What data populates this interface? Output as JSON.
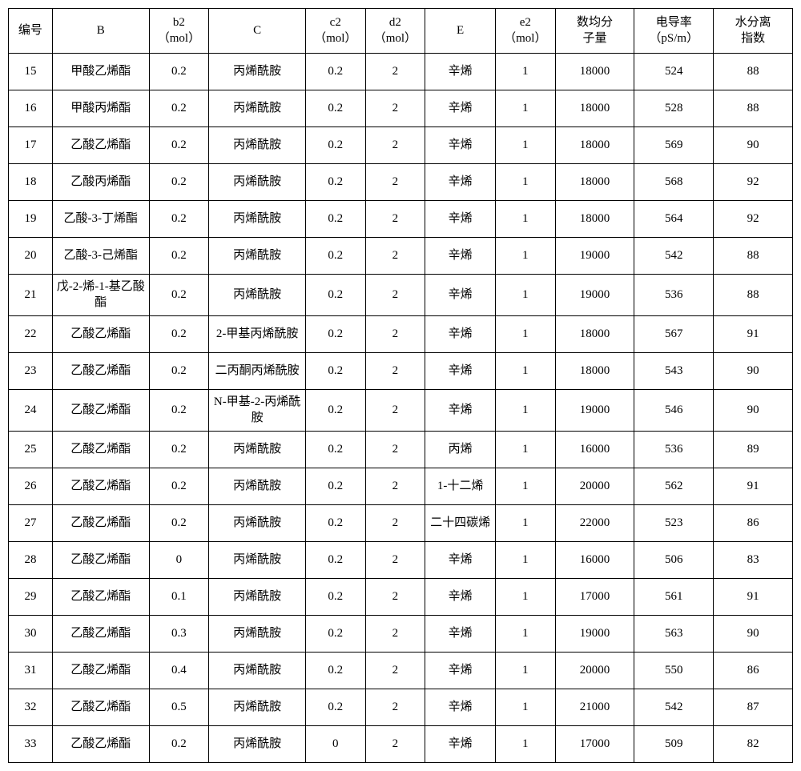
{
  "columns": [
    {
      "label": "编号",
      "class": "col-num"
    },
    {
      "label": "B",
      "class": "col-B"
    },
    {
      "label": "b2（mol）",
      "class": "col-b2"
    },
    {
      "label": "C",
      "class": "col-C"
    },
    {
      "label": "c2（mol）",
      "class": "col-c2"
    },
    {
      "label": "d2（mol）",
      "class": "col-d2"
    },
    {
      "label": "E",
      "class": "col-E"
    },
    {
      "label": "e2（mol）",
      "class": "col-e2"
    },
    {
      "label": "数均分子量",
      "class": "col-mw"
    },
    {
      "label": "电导率（pS/m）",
      "class": "col-cd"
    },
    {
      "label": "水分离指数",
      "class": "col-ws"
    }
  ],
  "rows": [
    [
      "15",
      "甲酸乙烯酯",
      "0.2",
      "丙烯酰胺",
      "0.2",
      "2",
      "辛烯",
      "1",
      "18000",
      "524",
      "88"
    ],
    [
      "16",
      "甲酸丙烯酯",
      "0.2",
      "丙烯酰胺",
      "0.2",
      "2",
      "辛烯",
      "1",
      "18000",
      "528",
      "88"
    ],
    [
      "17",
      "乙酸乙烯酯",
      "0.2",
      "丙烯酰胺",
      "0.2",
      "2",
      "辛烯",
      "1",
      "18000",
      "569",
      "90"
    ],
    [
      "18",
      "乙酸丙烯酯",
      "0.2",
      "丙烯酰胺",
      "0.2",
      "2",
      "辛烯",
      "1",
      "18000",
      "568",
      "92"
    ],
    [
      "19",
      "乙酸-3-丁烯酯",
      "0.2",
      "丙烯酰胺",
      "0.2",
      "2",
      "辛烯",
      "1",
      "18000",
      "564",
      "92"
    ],
    [
      "20",
      "乙酸-3-己烯酯",
      "0.2",
      "丙烯酰胺",
      "0.2",
      "2",
      "辛烯",
      "1",
      "19000",
      "542",
      "88"
    ],
    [
      "21",
      "戊-2-烯-1-基乙酸酯",
      "0.2",
      "丙烯酰胺",
      "0.2",
      "2",
      "辛烯",
      "1",
      "19000",
      "536",
      "88"
    ],
    [
      "22",
      "乙酸乙烯酯",
      "0.2",
      "2-甲基丙烯酰胺",
      "0.2",
      "2",
      "辛烯",
      "1",
      "18000",
      "567",
      "91"
    ],
    [
      "23",
      "乙酸乙烯酯",
      "0.2",
      "二丙酮丙烯酰胺",
      "0.2",
      "2",
      "辛烯",
      "1",
      "18000",
      "543",
      "90"
    ],
    [
      "24",
      "乙酸乙烯酯",
      "0.2",
      "N-甲基-2-丙烯酰胺",
      "0.2",
      "2",
      "辛烯",
      "1",
      "19000",
      "546",
      "90"
    ],
    [
      "25",
      "乙酸乙烯酯",
      "0.2",
      "丙烯酰胺",
      "0.2",
      "2",
      "丙烯",
      "1",
      "16000",
      "536",
      "89"
    ],
    [
      "26",
      "乙酸乙烯酯",
      "0.2",
      "丙烯酰胺",
      "0.2",
      "2",
      "1-十二烯",
      "1",
      "20000",
      "562",
      "91"
    ],
    [
      "27",
      "乙酸乙烯酯",
      "0.2",
      "丙烯酰胺",
      "0.2",
      "2",
      "二十四碳烯",
      "1",
      "22000",
      "523",
      "86"
    ],
    [
      "28",
      "乙酸乙烯酯",
      "0",
      "丙烯酰胺",
      "0.2",
      "2",
      "辛烯",
      "1",
      "16000",
      "506",
      "83"
    ],
    [
      "29",
      "乙酸乙烯酯",
      "0.1",
      "丙烯酰胺",
      "0.2",
      "2",
      "辛烯",
      "1",
      "17000",
      "561",
      "91"
    ],
    [
      "30",
      "乙酸乙烯酯",
      "0.3",
      "丙烯酰胺",
      "0.2",
      "2",
      "辛烯",
      "1",
      "19000",
      "563",
      "90"
    ],
    [
      "31",
      "乙酸乙烯酯",
      "0.4",
      "丙烯酰胺",
      "0.2",
      "2",
      "辛烯",
      "1",
      "20000",
      "550",
      "86"
    ],
    [
      "32",
      "乙酸乙烯酯",
      "0.5",
      "丙烯酰胺",
      "0.2",
      "2",
      "辛烯",
      "1",
      "21000",
      "542",
      "87"
    ],
    [
      "33",
      "乙酸乙烯酯",
      "0.2",
      "丙烯酰胺",
      "0",
      "2",
      "辛烯",
      "1",
      "17000",
      "509",
      "82"
    ]
  ],
  "label_meta": {
    "h0": "编号",
    "h1": "B",
    "h2a": "b2",
    "h2b": "（mol）",
    "h3": "C",
    "h4a": "c2",
    "h4b": "（mol）",
    "h5a": "d2",
    "h5b": "（mol）",
    "h6": "E",
    "h7a": "e2",
    "h7b": "（mol）",
    "h8a": "数均分",
    "h8b": "子量",
    "h9a": "电导率",
    "h9b": "（pS/m）",
    "h10a": "水分离",
    "h10b": "指数"
  }
}
